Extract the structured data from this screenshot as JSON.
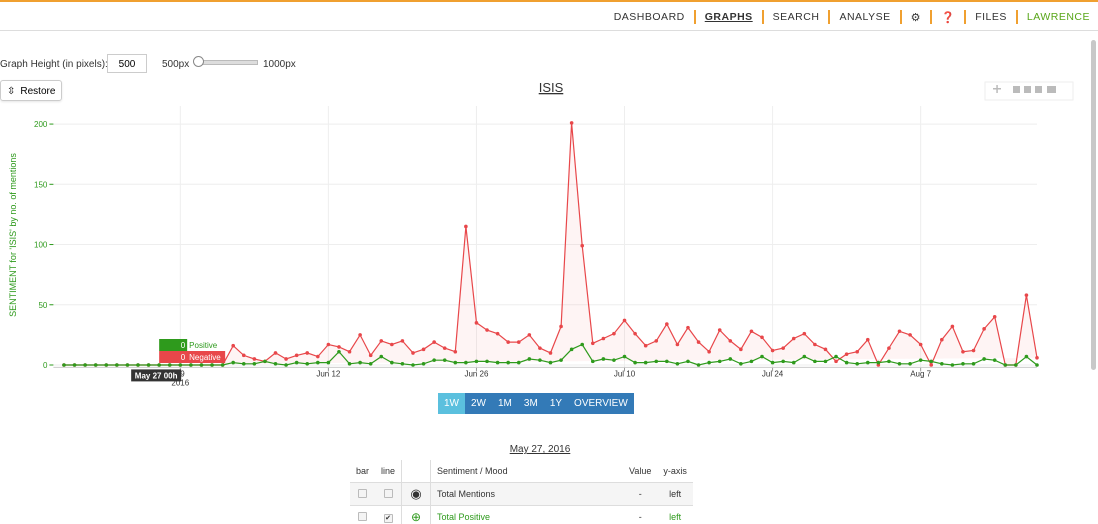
{
  "nav": {
    "items": [
      "DASHBOARD",
      "GRAPHS",
      "SEARCH",
      "ANALYSE",
      "FILES",
      "LAWRENCE"
    ]
  },
  "controls": {
    "height_label": "Graph Height (in pixels):",
    "height_value": 500,
    "min_label": "500px",
    "max_label": "1000px",
    "restore": "Restore"
  },
  "chart_data": {
    "type": "line",
    "title": "ISIS",
    "y_label": "SENTIMENT for 'ISIS' by no. of mentions",
    "x": [
      "2016-05-18",
      "2016-05-19",
      "2016-05-20",
      "2016-05-21",
      "2016-05-22",
      "2016-05-23",
      "2016-05-24",
      "2016-05-25",
      "2016-05-26",
      "2016-05-27",
      "2016-05-28",
      "2016-05-29",
      "2016-05-30",
      "2016-05-31",
      "2016-06-01",
      "2016-06-02",
      "2016-06-03",
      "2016-06-04",
      "2016-06-05",
      "2016-06-06",
      "2016-06-07",
      "2016-06-08",
      "2016-06-09",
      "2016-06-10",
      "2016-06-11",
      "2016-06-12",
      "2016-06-13",
      "2016-06-14",
      "2016-06-15",
      "2016-06-16",
      "2016-06-17",
      "2016-06-18",
      "2016-06-19",
      "2016-06-20",
      "2016-06-21",
      "2016-06-22",
      "2016-06-23",
      "2016-06-24",
      "2016-06-25",
      "2016-06-26",
      "2016-06-27",
      "2016-06-28",
      "2016-06-29",
      "2016-06-30",
      "2016-07-01",
      "2016-07-02",
      "2016-07-03",
      "2016-07-04",
      "2016-07-05",
      "2016-07-06",
      "2016-07-07",
      "2016-07-08",
      "2016-07-09",
      "2016-07-10",
      "2016-07-11",
      "2016-07-12",
      "2016-07-13",
      "2016-07-14",
      "2016-07-15",
      "2016-07-16",
      "2016-07-17",
      "2016-07-18",
      "2016-07-19",
      "2016-07-20",
      "2016-07-21",
      "2016-07-22",
      "2016-07-23",
      "2016-07-24",
      "2016-07-25",
      "2016-07-26",
      "2016-07-27",
      "2016-07-28",
      "2016-07-29",
      "2016-07-30",
      "2016-07-31",
      "2016-08-01",
      "2016-08-02",
      "2016-08-03",
      "2016-08-04",
      "2016-08-05",
      "2016-08-06",
      "2016-08-07",
      "2016-08-08",
      "2016-08-09",
      "2016-08-10",
      "2016-08-11",
      "2016-08-12",
      "2016-08-13",
      "2016-08-14",
      "2016-08-15",
      "2016-08-16",
      "2016-08-17",
      "2016-08-18"
    ],
    "series": [
      {
        "name": "Negative",
        "color": "#e8474a",
        "values": [
          0,
          0,
          0,
          0,
          0,
          0,
          0,
          0,
          0,
          0,
          0,
          0,
          0,
          0,
          0,
          0,
          16,
          8,
          5,
          3,
          10,
          5,
          8,
          10,
          7,
          17,
          15,
          11,
          25,
          8,
          20,
          17,
          20,
          10,
          13,
          19,
          14,
          11,
          115,
          35,
          29,
          26,
          19,
          19,
          25,
          14,
          10,
          32,
          201,
          99,
          18,
          22,
          26,
          37,
          26,
          16,
          20,
          34,
          17,
          31,
          19,
          11,
          29,
          20,
          13,
          28,
          23,
          12,
          14,
          22,
          26,
          17,
          13,
          3,
          9,
          11,
          21,
          0,
          14,
          28,
          25,
          17,
          0,
          21,
          32,
          11,
          12,
          30,
          40,
          0,
          0,
          58,
          6
        ]
      },
      {
        "name": "Positive",
        "color": "#2e9a1c",
        "values": [
          0,
          0,
          0,
          0,
          0,
          0,
          0,
          0,
          0,
          0,
          0,
          0,
          0,
          0,
          0,
          0,
          2,
          1,
          1,
          3,
          1,
          0,
          2,
          1,
          2,
          2,
          11,
          1,
          2,
          1,
          7,
          2,
          1,
          0,
          1,
          4,
          4,
          2,
          2,
          3,
          3,
          2,
          2,
          2,
          5,
          4,
          2,
          4,
          13,
          17,
          3,
          5,
          4,
          7,
          2,
          2,
          3,
          3,
          1,
          3,
          0,
          2,
          3,
          5,
          1,
          3,
          7,
          2,
          3,
          2,
          7,
          3,
          3,
          7,
          2,
          1,
          2,
          2,
          3,
          1,
          1,
          4,
          3,
          1,
          0,
          1,
          1,
          5,
          4,
          0,
          0,
          7,
          0
        ]
      }
    ],
    "xlim": [
      "2016-05-17",
      "2016-08-18"
    ],
    "xticks": [
      {
        "value": "2016-05-29",
        "label": "29"
      },
      {
        "value": "2016-06-12",
        "label": "Jun 12"
      },
      {
        "value": "2016-06-26",
        "label": "Jun 26"
      },
      {
        "value": "2016-07-10",
        "label": "Jul 10"
      },
      {
        "value": "2016-07-24",
        "label": "Jul 24"
      },
      {
        "value": "2016-08-07",
        "label": "Aug 7"
      }
    ],
    "year_label": "2016",
    "ylim": [
      -2,
      215
    ],
    "yticks": [
      0,
      50,
      100,
      150,
      200
    ],
    "grid": true,
    "tooltip": {
      "x": "2016-05-27",
      "label": "May 27 00h"
    }
  },
  "ranges": [
    "1W",
    "2W",
    "1M",
    "3M",
    "1Y",
    "OVERVIEW"
  ],
  "table": {
    "date": "May 27, 2016",
    "header": [
      "bar",
      "line",
      "Sentiment / Mood",
      "Value",
      "y-axis"
    ],
    "rows": [
      [
        "Total Mentions",
        "-",
        "left"
      ],
      [
        "Total Positive",
        "-",
        "left"
      ]
    ]
  }
}
